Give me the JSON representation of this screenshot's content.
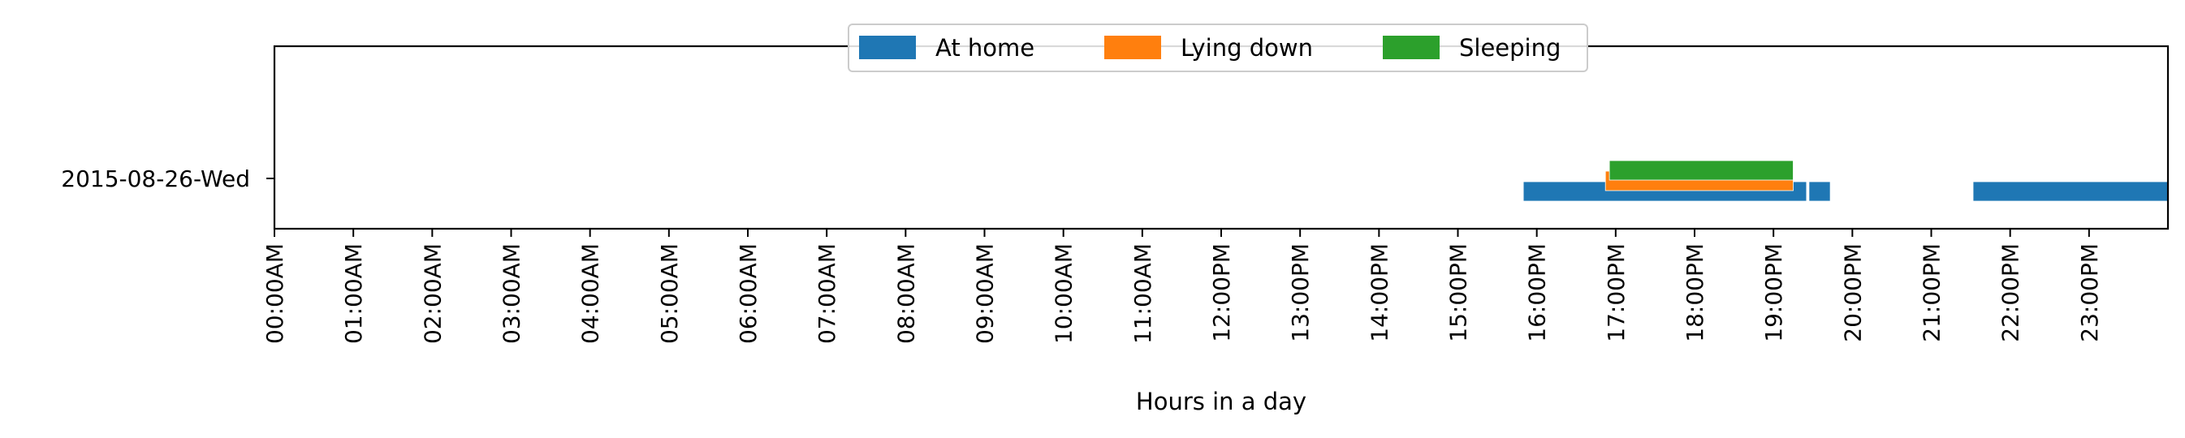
{
  "chart_data": {
    "type": "bar",
    "orientation": "horizontal",
    "xlabel": "Hours in a day",
    "ylabel": "",
    "xlim": [
      0,
      24
    ],
    "x_ticks": [
      {
        "value": 0,
        "label": "00:00AM"
      },
      {
        "value": 1,
        "label": "01:00AM"
      },
      {
        "value": 2,
        "label": "02:00AM"
      },
      {
        "value": 3,
        "label": "03:00AM"
      },
      {
        "value": 4,
        "label": "04:00AM"
      },
      {
        "value": 5,
        "label": "05:00AM"
      },
      {
        "value": 6,
        "label": "06:00AM"
      },
      {
        "value": 7,
        "label": "07:00AM"
      },
      {
        "value": 8,
        "label": "08:00AM"
      },
      {
        "value": 9,
        "label": "09:00AM"
      },
      {
        "value": 10,
        "label": "10:00AM"
      },
      {
        "value": 11,
        "label": "11:00AM"
      },
      {
        "value": 12,
        "label": "12:00PM"
      },
      {
        "value": 13,
        "label": "13:00PM"
      },
      {
        "value": 14,
        "label": "14:00PM"
      },
      {
        "value": 15,
        "label": "15:00PM"
      },
      {
        "value": 16,
        "label": "16:00PM"
      },
      {
        "value": 17,
        "label": "17:00PM"
      },
      {
        "value": 18,
        "label": "18:00PM"
      },
      {
        "value": 19,
        "label": "19:00PM"
      },
      {
        "value": 20,
        "label": "20:00PM"
      },
      {
        "value": 21,
        "label": "21:00PM"
      },
      {
        "value": 22,
        "label": "22:00PM"
      },
      {
        "value": 23,
        "label": "23:00PM"
      }
    ],
    "categories": [
      "2015-08-26-Wed"
    ],
    "legend_position": "top-center",
    "grid": false,
    "series": [
      {
        "name": "At home",
        "color": "#1f77b4",
        "intervals": [
          [
            15.83,
            19.42
          ],
          [
            19.45,
            19.72
          ],
          [
            21.53,
            24.0
          ]
        ]
      },
      {
        "name": "Lying down",
        "color": "#ff7f0e",
        "intervals": [
          [
            16.87,
            19.25
          ]
        ]
      },
      {
        "name": "Sleeping",
        "color": "#2ca02c",
        "intervals": [
          [
            16.92,
            19.25
          ]
        ]
      }
    ]
  }
}
